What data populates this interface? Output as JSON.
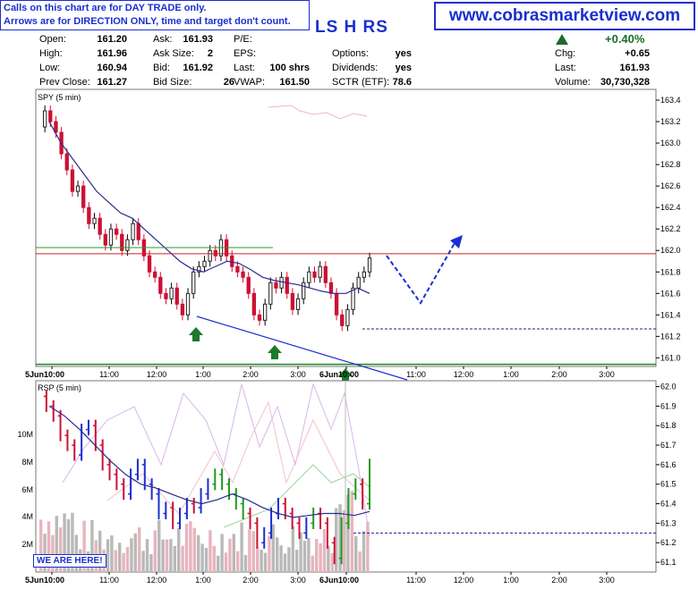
{
  "notice": {
    "line1": "Calls on this chart are for DAY TRADE only.",
    "line2": "Arrows are for DIRECTION ONLY, time and target don't count."
  },
  "website": "www.cobrasmarketview.com",
  "ticker_title": "LS H RS",
  "quote": {
    "open_label": "Open:",
    "open": "161.20",
    "high_label": "High:",
    "high": "161.96",
    "low_label": "Low:",
    "low": "160.94",
    "prev_label": "Prev Close:",
    "prev": "161.27",
    "ask_label": "Ask:",
    "ask": "161.93",
    "asksize_label": "Ask Size:",
    "asksize": "2",
    "bid_label": "Bid:",
    "bid": "161.92",
    "bidsize_label": "Bid Size:",
    "bidsize": "26",
    "pe_label": "P/E:",
    "eps_label": "EPS:",
    "last_label": "Last:",
    "last_shrs": "100 shrs",
    "vwap_label": "VWAP:",
    "vwap": "161.50",
    "options_label": "Options:",
    "options": "yes",
    "dividends_label": "Dividends:",
    "dividends": "yes",
    "sctr_label": "SCTR (ETF):",
    "sctr": "78.6",
    "change_pct": "+0.40%",
    "chg_label": "Chg:",
    "chg": "+0.65",
    "last2_label": "Last:",
    "last2": "161.93",
    "volume_label": "Volume:",
    "volume": "30,730,328"
  },
  "here_label": "WE ARE HERE!",
  "colors": {
    "up": "#1e9a1e",
    "down": "#cc1133",
    "blue": "#1a2fd0",
    "ma": "#2a2a90",
    "resist": "#cc2222",
    "support": "#1a8a1a",
    "arrow_green": "#1b7a2b"
  },
  "chart_data": [
    {
      "type": "candlestick",
      "title": "SPY (5 min)",
      "x_ticks": [
        "5Jun10:00",
        "11:00",
        "12:00",
        "1:00",
        "2:00",
        "3:00",
        "6Jun10:00",
        "11:00",
        "12:00",
        "1:00",
        "2:00",
        "3:00"
      ],
      "y_ticks": [
        "163.4",
        "163.2",
        "163.0",
        "162.8",
        "162.6",
        "162.4",
        "162.2",
        "162.0",
        "161.8",
        "161.6",
        "161.4",
        "161.2",
        "161.0"
      ],
      "ylim": [
        160.92,
        163.5
      ],
      "price_path": [
        163.15,
        163.3,
        163.2,
        163.1,
        162.9,
        162.75,
        162.55,
        162.6,
        162.4,
        162.25,
        162.3,
        162.15,
        162.05,
        162.2,
        162.15,
        162.0,
        162.1,
        162.25,
        162.1,
        161.95,
        161.8,
        161.75,
        161.6,
        161.55,
        161.65,
        161.5,
        161.4,
        161.6,
        161.8,
        161.85,
        161.9,
        162.0,
        161.95,
        162.1,
        161.95,
        161.85,
        161.8,
        161.75,
        161.6,
        161.4,
        161.35,
        161.5,
        161.7,
        161.65,
        161.75,
        161.6,
        161.45,
        161.55,
        161.7,
        161.8,
        161.75,
        161.85,
        161.7,
        161.6,
        161.4,
        161.3,
        161.45,
        161.65,
        161.75,
        161.8,
        161.93
      ],
      "moving_average": [
        163.2,
        163.0,
        162.85,
        162.7,
        162.55,
        162.45,
        162.35,
        162.3,
        162.2,
        162.1,
        162.0,
        161.9,
        161.83,
        161.8,
        161.85,
        161.9,
        161.88,
        161.82,
        161.75,
        161.72,
        161.7,
        161.68,
        161.65,
        161.62,
        161.6,
        161.6,
        161.65,
        161.6
      ],
      "resistance": 161.97,
      "support_lines": [
        160.94,
        161.27
      ],
      "trendline": {
        "from": [
          "1:00",
          161.35
        ],
        "to": [
          "6Jun11:00",
          160.85
        ]
      },
      "projection": [
        [
          "6Jun10:00",
          161.93
        ],
        [
          "6Jun11:00",
          161.55
        ],
        [
          "12:00",
          162.05
        ]
      ],
      "up_arrows": [
        "1:00",
        "2:30",
        "6Jun10:00"
      ]
    },
    {
      "type": "line",
      "title": "RSP (5 min)",
      "y_ticks": [
        "62.0",
        "61.9",
        "61.8",
        "61.7",
        "61.6",
        "61.5",
        "61.4",
        "61.3",
        "61.2",
        "61.1"
      ],
      "ylim": [
        61.05,
        62.03
      ],
      "volume_ticks": [
        "10M",
        "8M",
        "6M",
        "4M",
        "2M"
      ],
      "price_path": [
        61.95,
        61.9,
        61.85,
        61.75,
        61.7,
        61.65,
        61.78,
        61.8,
        61.7,
        61.6,
        61.55,
        61.5,
        61.45,
        61.55,
        61.6,
        61.5,
        61.45,
        61.35,
        61.38,
        61.3,
        61.35,
        61.4,
        61.38,
        61.45,
        61.5,
        61.55,
        61.5,
        61.45,
        61.4,
        61.35,
        61.3,
        61.2,
        61.25,
        61.35,
        61.4,
        61.35,
        61.3,
        61.25,
        61.3,
        61.35,
        61.3,
        61.2,
        61.12,
        61.3,
        61.45,
        61.5,
        61.4,
        61.6
      ],
      "moving_average": [
        61.9,
        61.85,
        61.78,
        61.7,
        61.62,
        61.55,
        61.5,
        61.48,
        61.45,
        61.42,
        61.4,
        61.42,
        61.45,
        61.42,
        61.38,
        61.35,
        61.33,
        61.34,
        61.35,
        61.35,
        61.34,
        61.36
      ],
      "resistance": 61.25
    }
  ]
}
